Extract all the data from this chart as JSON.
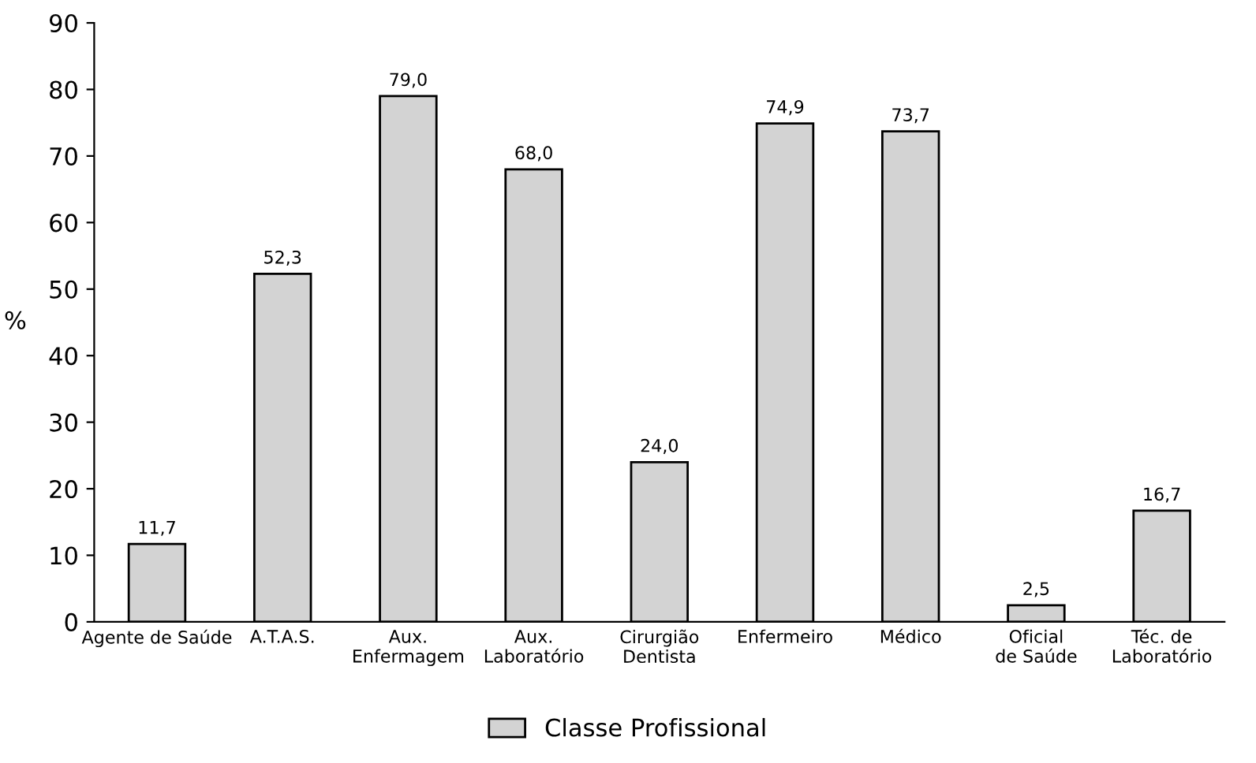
{
  "chart_data": {
    "type": "bar",
    "categories": [
      "Agente de Saúde",
      "A.T.A.S.",
      "Aux.\nEnfermagem",
      "Aux.\nLaboratório",
      "Cirurgião\nDentista",
      "Enfermeiro",
      "Médico",
      "Oficial\nde Saúde",
      "Téc. de\nLaboratório"
    ],
    "series": [
      {
        "name": "Classe Profissional",
        "color": "#d3d3d3",
        "values": [
          11.7,
          52.3,
          79.0,
          68.0,
          24.0,
          74.9,
          73.7,
          2.5,
          16.7
        ],
        "value_labels": [
          "11,7",
          "52,3",
          "79,0",
          "68,0",
          "24,0",
          "74,9",
          "73,7",
          "2,5",
          "16,7"
        ]
      }
    ],
    "ylabel": "%",
    "ylim": [
      0,
      90
    ],
    "yticks": [
      0,
      10,
      20,
      30,
      40,
      50,
      60,
      70,
      80,
      90
    ],
    "grid": false,
    "legend": "bottom"
  }
}
